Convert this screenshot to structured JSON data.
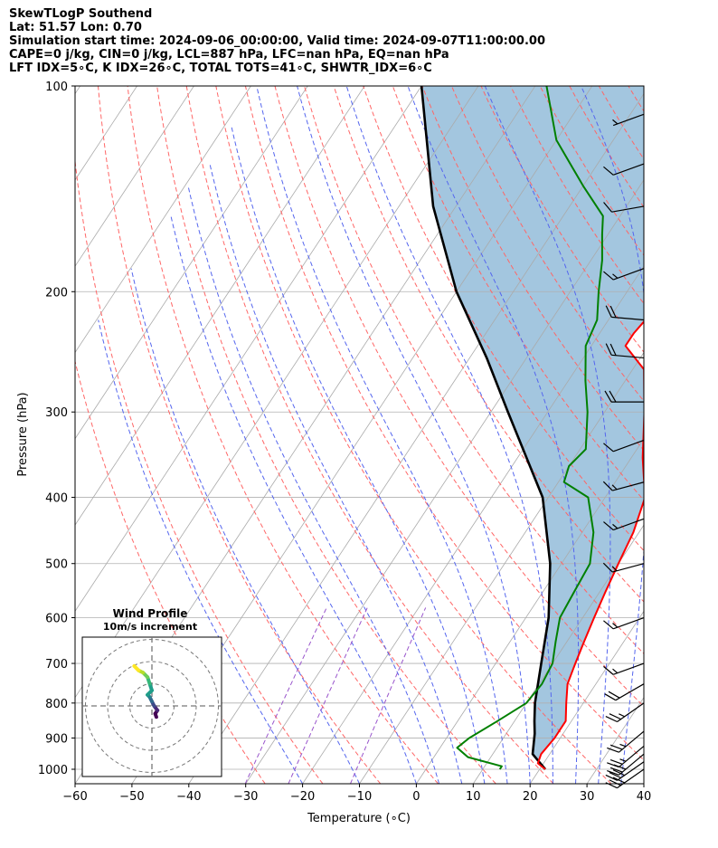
{
  "header": {
    "line1": "SkewTLogP Southend",
    "line2": "Lat: 51.57   Lon: 0.70",
    "line3": "Simulation start time: 2024-09-06_00:00:00, Valid time: 2024-09-07T11:00:00.00",
    "line4": "CAPE=0 j/kg, CIN=0 j/kg, LCL=887 hPa, LFC=nan hPa, EQ=nan hPa",
    "line5": "LFT IDX=5∘C, K IDX=26∘C, TOTAL TOTS=41∘C, SHWTR_IDX=6∘C"
  },
  "chart_data": {
    "type": "line",
    "xlabel": "Temperature (∘C)",
    "ylabel": "Pressure (hPa)",
    "xlim": [
      -60,
      40
    ],
    "ylim": [
      1050,
      100
    ],
    "y_scale": "log",
    "x_ticks": [
      -60,
      -50,
      -40,
      -30,
      -20,
      -10,
      0,
      10,
      20,
      30,
      40
    ],
    "x_tick_labels": [
      "−60",
      "−50",
      "−40",
      "−30",
      "−20",
      "−10",
      "0",
      "10",
      "20",
      "30",
      "40"
    ],
    "y_ticks": [
      100,
      200,
      300,
      400,
      500,
      600,
      700,
      800,
      900,
      1000
    ],
    "y_tick_labels": [
      "100",
      "200",
      "300",
      "400",
      "500",
      "600",
      "700",
      "800",
      "900",
      "1000"
    ],
    "grid": true,
    "colors": {
      "temperature": "#ff0000",
      "dewpoint": "#008000",
      "parcel": "#000000",
      "shading": "#a3c6df",
      "dry_adiabat": "#ff6666",
      "moist_adiabat": "#5566ee",
      "mixing_ratio": "#9955cc",
      "isotherm": "#aaaaaa"
    },
    "series": [
      {
        "role": "temperature",
        "points": [
          [
            1000,
            21
          ],
          [
            980,
            19
          ],
          [
            950,
            18.5
          ],
          [
            900,
            19
          ],
          [
            850,
            19
          ],
          [
            800,
            17
          ],
          [
            750,
            15
          ],
          [
            700,
            14
          ],
          [
            650,
            13
          ],
          [
            600,
            12
          ],
          [
            550,
            11
          ],
          [
            500,
            10
          ],
          [
            450,
            9
          ],
          [
            400,
            7
          ],
          [
            350,
            2
          ],
          [
            300,
            -3
          ],
          [
            260,
            -8
          ],
          [
            240,
            -14
          ],
          [
            230,
            -14
          ],
          [
            210,
            -13
          ],
          [
            190,
            -14
          ],
          [
            170,
            -15
          ],
          [
            150,
            -17
          ],
          [
            140,
            -19
          ],
          [
            125,
            -20
          ],
          [
            110,
            -21
          ],
          [
            100,
            -22
          ]
        ]
      },
      {
        "role": "dewpoint",
        "points": [
          [
            1000,
            13
          ],
          [
            990,
            13
          ],
          [
            960,
            6
          ],
          [
            930,
            3
          ],
          [
            900,
            4
          ],
          [
            850,
            7
          ],
          [
            800,
            10
          ],
          [
            750,
            10.5
          ],
          [
            700,
            10
          ],
          [
            650,
            8
          ],
          [
            600,
            6
          ],
          [
            550,
            5.5
          ],
          [
            500,
            5
          ],
          [
            450,
            2
          ],
          [
            400,
            -3
          ],
          [
            380,
            -9
          ],
          [
            360,
            -10
          ],
          [
            340,
            -9
          ],
          [
            300,
            -13
          ],
          [
            270,
            -17
          ],
          [
            240,
            -21
          ],
          [
            220,
            -22
          ],
          [
            200,
            -25
          ],
          [
            180,
            -28
          ],
          [
            165,
            -31
          ],
          [
            155,
            -33
          ],
          [
            140,
            -40
          ],
          [
            120,
            -50
          ],
          [
            100,
            -58
          ]
        ]
      },
      {
        "role": "parcel",
        "points": [
          [
            1000,
            21
          ],
          [
            950,
            17
          ],
          [
            887,
            15
          ],
          [
            850,
            13.5
          ],
          [
            800,
            11.5
          ],
          [
            700,
            8
          ],
          [
            600,
            4
          ],
          [
            500,
            -2
          ],
          [
            400,
            -11
          ],
          [
            300,
            -27
          ],
          [
            250,
            -37
          ],
          [
            200,
            -50
          ],
          [
            150,
            -64
          ],
          [
            100,
            -80
          ]
        ]
      }
    ],
    "wind_barbs": [
      {
        "p": 1000,
        "spd": 30,
        "dir": 235
      },
      {
        "p": 975,
        "spd": 30,
        "dir": 235
      },
      {
        "p": 950,
        "spd": 30,
        "dir": 230
      },
      {
        "p": 925,
        "spd": 25,
        "dir": 230
      },
      {
        "p": 880,
        "spd": 25,
        "dir": 230
      },
      {
        "p": 800,
        "spd": 25,
        "dir": 235
      },
      {
        "p": 750,
        "spd": 20,
        "dir": 240
      },
      {
        "p": 700,
        "spd": 15,
        "dir": 250
      },
      {
        "p": 600,
        "spd": 15,
        "dir": 250
      },
      {
        "p": 500,
        "spd": 15,
        "dir": 255
      },
      {
        "p": 430,
        "spd": 15,
        "dir": 250
      },
      {
        "p": 380,
        "spd": 15,
        "dir": 255
      },
      {
        "p": 330,
        "spd": 10,
        "dir": 250
      },
      {
        "p": 290,
        "spd": 20,
        "dir": 270
      },
      {
        "p": 250,
        "spd": 20,
        "dir": 275
      },
      {
        "p": 220,
        "spd": 20,
        "dir": 275
      },
      {
        "p": 185,
        "spd": 15,
        "dir": 250
      },
      {
        "p": 150,
        "spd": 10,
        "dir": 260
      },
      {
        "p": 130,
        "spd": 10,
        "dir": 250
      },
      {
        "p": 110,
        "spd": 5,
        "dir": 250
      }
    ],
    "hodograph": {
      "title": "Wind Profile",
      "subtitle": "10m/s increment",
      "points": [
        [
          2,
          -5
        ],
        [
          1.5,
          -3.5
        ],
        [
          2.5,
          -2
        ],
        [
          1,
          0
        ],
        [
          0,
          2
        ],
        [
          -1,
          4
        ],
        [
          -2,
          5
        ],
        [
          0,
          7
        ],
        [
          -1,
          10
        ],
        [
          -2,
          13
        ],
        [
          -4,
          15
        ],
        [
          -6,
          16
        ],
        [
          -8,
          18
        ]
      ]
    }
  }
}
